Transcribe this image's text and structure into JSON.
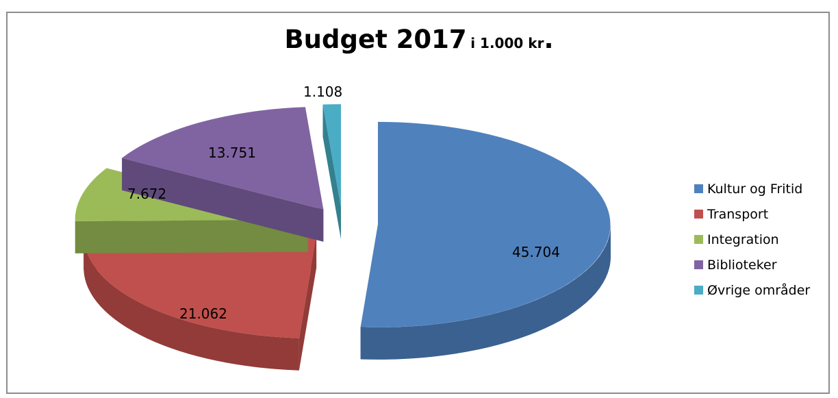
{
  "chart_data": {
    "type": "pie",
    "title_main": "Budget 2017",
    "title_sub": "i 1.000 kr",
    "title_end": ".",
    "categories": [
      "Kultur og Fritid",
      "Transport",
      "Integration",
      "Biblioteker",
      "Øvrige områder"
    ],
    "values": [
      45704,
      21062,
      7672,
      13751,
      1108
    ],
    "data_labels": [
      "45.704",
      "21.062",
      "7.672",
      "13.751",
      "1.108"
    ],
    "colors": [
      "#4f81bd",
      "#c0504d",
      "#9bbb59",
      "#8064a2",
      "#4bacc6"
    ],
    "side_colors": [
      "#3a6190",
      "#923b38",
      "#738c41",
      "#5f4a7b",
      "#34808f"
    ],
    "exploded": true,
    "three_d": true,
    "legend_position": "right"
  }
}
